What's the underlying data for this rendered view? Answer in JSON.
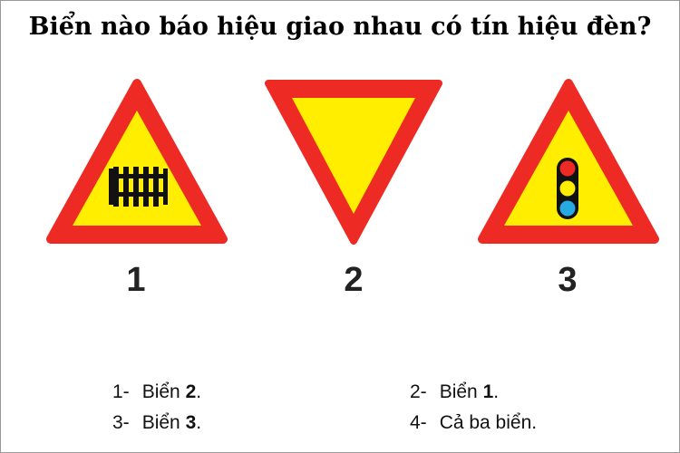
{
  "question": "Biển nào báo hiệu giao nhau có tín hiệu đèn?",
  "signs": [
    {
      "number": "1",
      "type": "warning triangle",
      "pictogram": "railway-crossing-fence"
    },
    {
      "number": "2",
      "type": "inverted triangle",
      "pictogram": "none"
    },
    {
      "number": "3",
      "type": "warning triangle",
      "pictogram": "traffic-light"
    }
  ],
  "colors": {
    "border_red": "#ee2a24",
    "fill_yellow": "#ffee00",
    "light_red": "#ee2a24",
    "light_yellow": "#ffee00",
    "light_blue": "#27a9e1"
  },
  "answers": [
    {
      "index": "1-",
      "prefix": "Biển ",
      "bold": "2",
      "suffix": "."
    },
    {
      "index": "2-",
      "prefix": "Biển ",
      "bold": "1",
      "suffix": "."
    },
    {
      "index": "3-",
      "prefix": "Biển ",
      "bold": "3",
      "suffix": "."
    },
    {
      "index": "4-",
      "prefix": "Cả ba biển.",
      "bold": "",
      "suffix": ""
    }
  ]
}
